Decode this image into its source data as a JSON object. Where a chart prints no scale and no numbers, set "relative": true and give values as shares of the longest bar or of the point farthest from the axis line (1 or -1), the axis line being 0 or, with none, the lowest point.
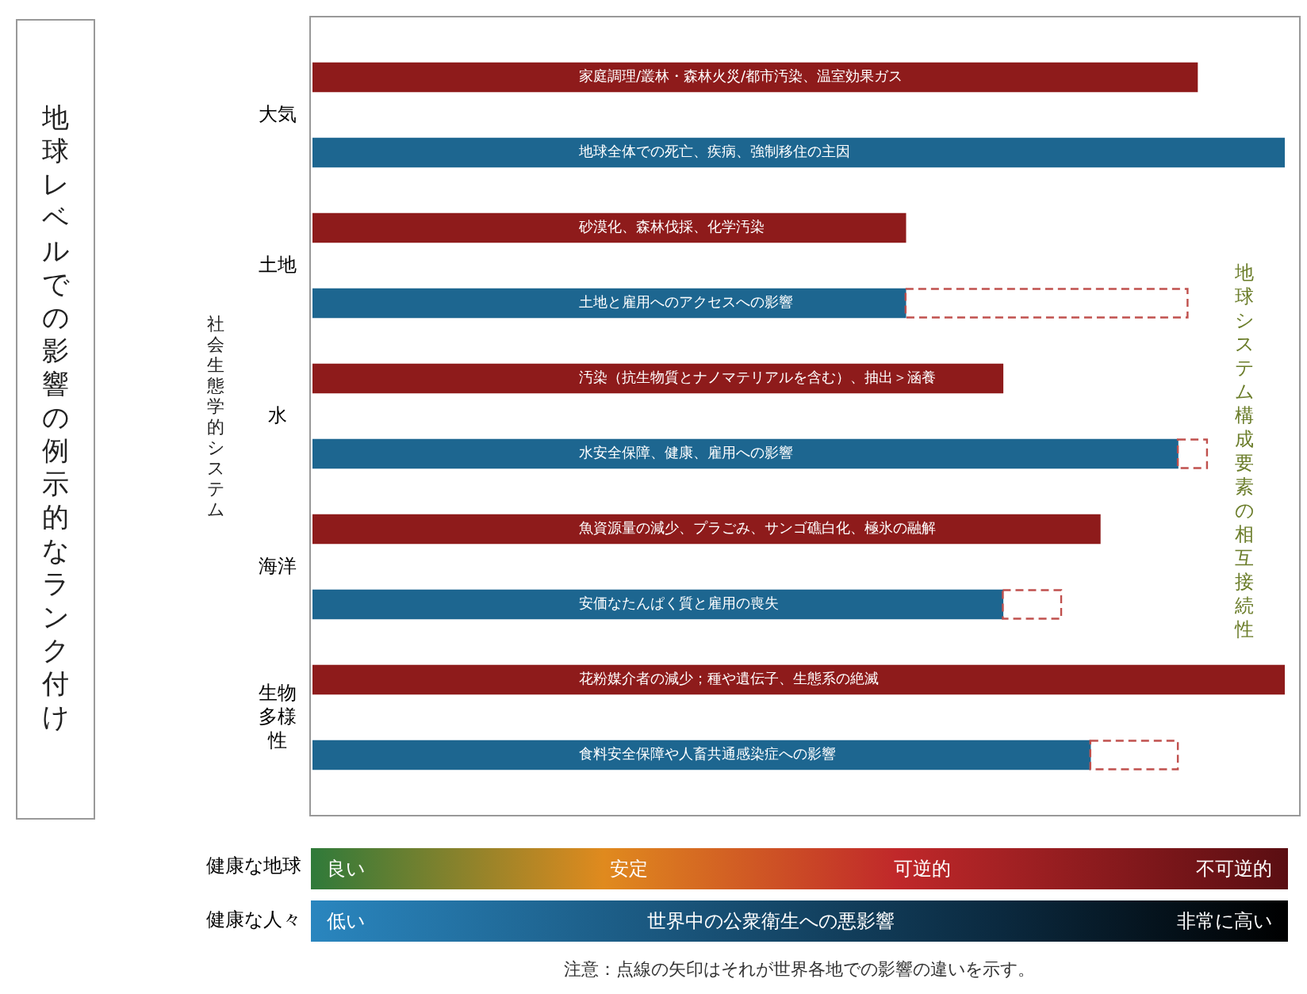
{
  "chart_data": {
    "type": "bar",
    "orientation": "horizontal",
    "relative": true,
    "stacked": true,
    "legend": false,
    "title": "地球レベルでの影響の例示的なランク付け",
    "categories": [
      "家庭調理/叢林・森林火災/都市汚染、温室効果ガス",
      "地球全体での死亡、疾病、強制移住の主因",
      "砂漠化、森林伐採、化学汚染",
      "土地と雇用へのアクセスへの影響",
      "汚染（抗生物質とナノマテリアルを含む）、抽出＞涵養",
      "水安全保障、健康、雇用への影響",
      "魚資源量の減少、プラごみ、サンゴ礁白化、極氷の融解",
      "安価なたんぱく質と雇用の喪失",
      "花粉媒介者の減少；種や遺伝子、生態系の絶滅",
      "食料安全保障や人畜共通感染症への影響"
    ],
    "series": [
      {
        "colors": [
          "#8e1b1b",
          "#1d6690",
          "#8e1b1b",
          "#1d6690",
          "#8e1b1b",
          "#1d6690",
          "#8e1b1b",
          "#1d6690",
          "#8e1b1b",
          "#1d6690"
        ],
        "values": [
          0.91,
          1,
          0.61,
          0.61,
          0.71,
          0.89,
          0.81,
          0.71,
          1,
          0.8
        ]
      },
      {
        "color": "#c0504d",
        "line_style": "dashed",
        "values": [
          null,
          null,
          null,
          0.29,
          null,
          0.03,
          null,
          0.06,
          null,
          0.09
        ]
      }
    ],
    "annotations": [
      "大気",
      "土地",
      "水",
      "海洋",
      "生物多様性",
      "社会生態学的システム",
      "地球システム構成要素の相互接続性",
      "健康な地球",
      "良い",
      "安定",
      "可逆的",
      "不可逆的",
      "健康な人々",
      "低い",
      "世界中の公衆衛生への悪影響",
      "非常に高い",
      "注意：点線の矢印はそれが世界各地での影響の違いを示す。"
    ]
  }
}
